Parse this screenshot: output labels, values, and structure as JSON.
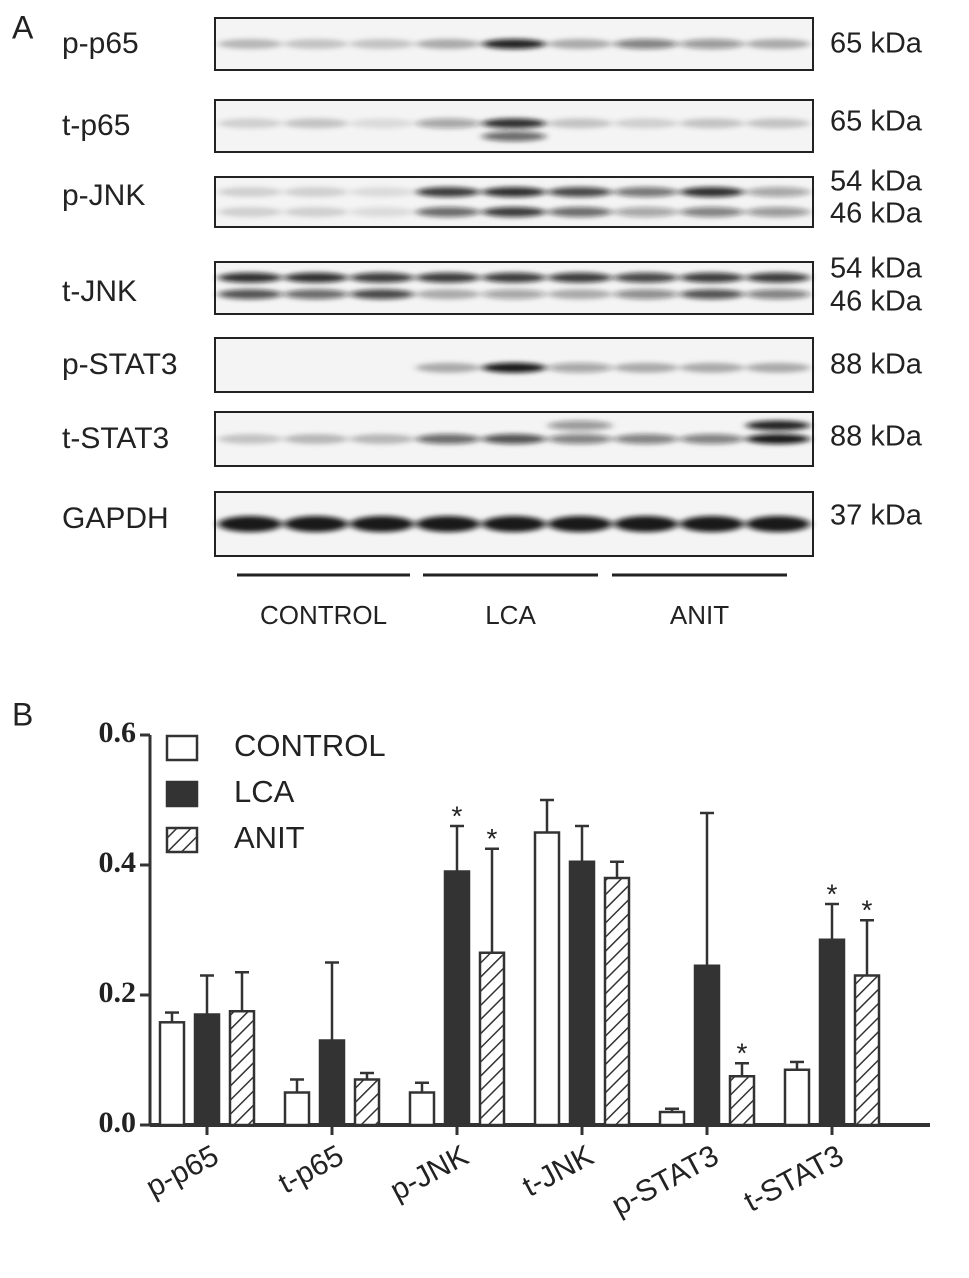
{
  "panel_a": {
    "label": "A",
    "blots": [
      {
        "name": "p-p65",
        "sizes": [
          "65 kDa"
        ]
      },
      {
        "name": "t-p65",
        "sizes": [
          "65 kDa"
        ]
      },
      {
        "name": "p-JNK",
        "sizes": [
          "54 kDa",
          "46 kDa"
        ]
      },
      {
        "name": "t-JNK",
        "sizes": [
          "54 kDa",
          "46 kDa"
        ]
      },
      {
        "name": "p-STAT3",
        "sizes": [
          "88 kDa"
        ]
      },
      {
        "name": "t-STAT3",
        "sizes": [
          "88 kDa"
        ]
      },
      {
        "name": "GAPDH",
        "sizes": [
          "37 kDa"
        ]
      }
    ],
    "groups": [
      "CONTROL",
      "LCA",
      "ANIT"
    ]
  },
  "panel_b": {
    "label": "B"
  },
  "chart_data": {
    "type": "bar",
    "categories": [
      "p-p65",
      "t-p65",
      "p-JNK",
      "t-JNK",
      "p-STAT3",
      "t-STAT3"
    ],
    "series": [
      {
        "name": "CONTROL",
        "color": "#ffffff",
        "hatch": false,
        "values": [
          0.158,
          0.05,
          0.05,
          0.45,
          0.02,
          0.085
        ],
        "errors": [
          0.015,
          0.02,
          0.015,
          0.05,
          0.005,
          0.012
        ],
        "markers": [
          null,
          null,
          null,
          null,
          null,
          null
        ]
      },
      {
        "name": "LCA",
        "color": "#333333",
        "hatch": false,
        "values": [
          0.17,
          0.13,
          0.39,
          0.405,
          0.245,
          0.285
        ],
        "errors": [
          0.06,
          0.12,
          0.07,
          0.055,
          0.235,
          0.055
        ],
        "markers": [
          null,
          null,
          "*",
          null,
          null,
          "*"
        ]
      },
      {
        "name": "ANIT",
        "color": "#ffffff",
        "hatch": true,
        "values": [
          0.175,
          0.07,
          0.265,
          0.38,
          0.075,
          0.23
        ],
        "errors": [
          0.06,
          0.01,
          0.16,
          0.025,
          0.02,
          0.085
        ],
        "markers": [
          null,
          null,
          "*",
          null,
          "*",
          "*"
        ]
      }
    ],
    "ylim": [
      0,
      0.6
    ],
    "yticks": [
      {
        "value": 0,
        "label": "0.0"
      },
      {
        "value": 0.2,
        "label": "0.2"
      },
      {
        "value": 0.4,
        "label": "0.4"
      },
      {
        "value": 0.6,
        "label": "0.6"
      }
    ]
  }
}
